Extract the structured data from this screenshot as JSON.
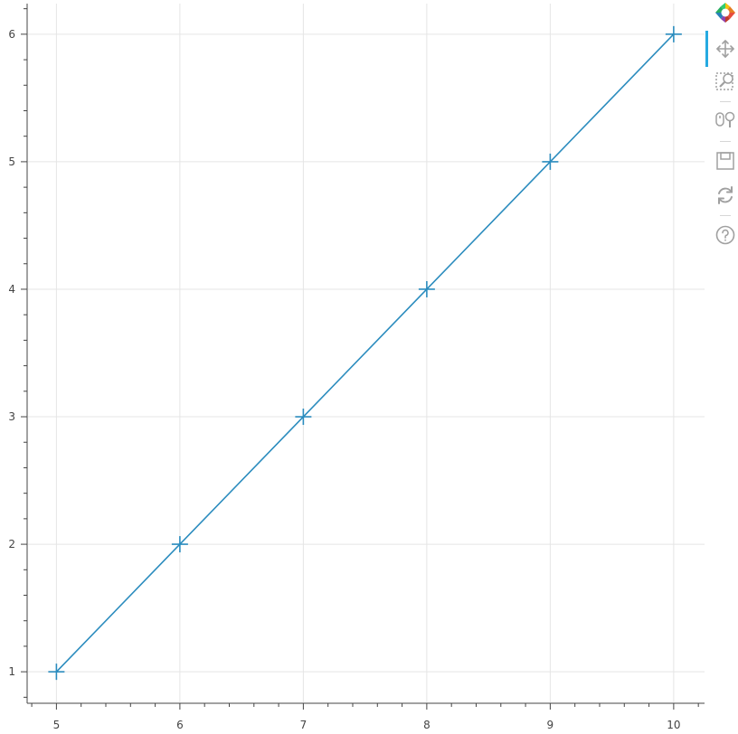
{
  "chart_data": {
    "type": "line",
    "title": "",
    "xlabel": "",
    "ylabel": "",
    "x": [
      5,
      6,
      7,
      8,
      9,
      10
    ],
    "series": [
      {
        "values": [
          1,
          2,
          3,
          4,
          5,
          6
        ],
        "color": "#2b8cbe",
        "marker": "cross"
      }
    ],
    "xlim": [
      4.77,
      10.25
    ],
    "ylim": [
      0.76,
      6.24
    ],
    "xticks": [
      "5",
      "6",
      "7",
      "8",
      "9",
      "10"
    ],
    "yticks": [
      "1",
      "2",
      "3",
      "4",
      "5",
      "6"
    ],
    "grid": true
  },
  "toolbar": {
    "tools": [
      {
        "name": "bokeh-logo-icon",
        "interactable": true
      },
      {
        "name": "pan-icon",
        "interactable": true,
        "active": true
      },
      {
        "name": "box-zoom-icon",
        "interactable": true
      },
      {
        "name": "wheel-zoom-icon",
        "interactable": true
      },
      {
        "name": "save-icon",
        "interactable": true
      },
      {
        "name": "reset-icon",
        "interactable": true
      },
      {
        "name": "help-icon",
        "interactable": true
      }
    ]
  },
  "colors": {
    "line": "#2b8cbe",
    "grid": "#e5e5e5",
    "axis": "#444444",
    "active_tool": "#26aae1",
    "tool_icon": "#a0a0a0"
  }
}
